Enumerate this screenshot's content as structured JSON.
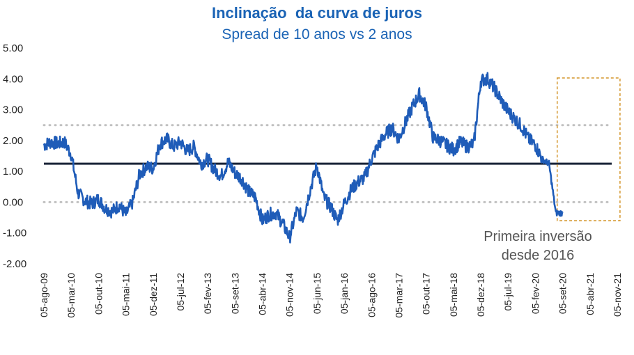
{
  "chart_data": {
    "type": "line",
    "title": "Inclinação  da curva de juros",
    "subtitle": "Spread de 10 anos vs 2 anos",
    "xlabel": "",
    "ylabel": "",
    "ylim": [
      -2.0,
      5.0
    ],
    "ytick_labels": [
      "5.00",
      "4.00",
      "3.00",
      "2.00",
      "1.00",
      "0.00",
      "-1.00",
      "-2.00"
    ],
    "yticks": [
      5,
      4,
      3,
      2,
      1,
      0,
      -1,
      -2
    ],
    "xtick_labels": [
      "05-ago-09",
      "05-mar-10",
      "05-out-10",
      "05-mai-11",
      "05-dez-11",
      "05-jul-12",
      "05-fev-13",
      "05-set-13",
      "05-abr-14",
      "05-nov-14",
      "05-jun-15",
      "05-jan-16",
      "05-ago-16",
      "05-mar-17",
      "05-out-17",
      "05-mai-18",
      "05-dez-18",
      "05-jul-19",
      "05-fev-20",
      "05-set-20",
      "05-abr-21",
      "05-nov-21"
    ],
    "grid": false,
    "reference_lines": [
      {
        "y": 2.5,
        "style": "dotted",
        "color": "#c0c0c0"
      },
      {
        "y": 0.0,
        "style": "dotted",
        "color": "#c0c0c0"
      },
      {
        "y": 1.25,
        "style": "solid",
        "color": "#1a2538"
      }
    ],
    "series": [
      {
        "color": "#1f5cb8",
        "x": [
          0.0,
          0.25,
          0.5,
          0.75,
          1.0,
          1.25,
          1.5,
          1.75,
          2.0,
          2.25,
          2.5,
          2.75,
          3.0,
          3.25,
          3.5,
          3.75,
          4.0,
          4.25,
          4.5,
          4.75,
          5.0,
          5.25,
          5.5,
          5.75,
          6.0,
          6.25,
          6.5,
          6.75,
          7.0,
          7.25,
          7.5,
          7.75,
          8.0,
          8.25,
          8.5,
          8.75,
          9.0,
          9.25,
          9.5,
          9.75,
          10.0,
          10.25,
          10.5,
          10.75,
          11.0,
          11.25,
          11.5,
          11.75,
          12.0,
          12.25,
          12.5,
          12.75,
          13.0,
          13.25,
          13.5,
          13.75,
          14.0,
          14.25,
          14.5,
          14.75,
          15.0,
          15.25,
          15.5,
          15.75,
          16.0,
          16.25,
          16.5,
          16.75,
          17.0,
          17.25,
          17.5,
          17.75,
          18.0,
          18.25,
          18.5,
          18.75,
          19.0,
          19.25,
          19.5,
          19.75,
          20.0,
          20.25,
          20.5,
          20.75,
          21.0
        ],
        "values": [
          1.85,
          1.95,
          1.9,
          1.95,
          1.55,
          0.3,
          0.05,
          -0.05,
          0.1,
          -0.2,
          -0.3,
          -0.1,
          -0.4,
          0.0,
          0.9,
          1.15,
          1.1,
          1.9,
          2.05,
          1.8,
          1.95,
          1.65,
          1.8,
          1.25,
          1.4,
          1.05,
          0.85,
          1.3,
          0.95,
          0.75,
          0.35,
          0.15,
          -0.6,
          -0.4,
          -0.35,
          -0.7,
          -1.15,
          -0.3,
          -0.5,
          0.4,
          1.2,
          0.15,
          -0.15,
          -0.6,
          -0.05,
          0.4,
          0.65,
          0.8,
          1.4,
          1.85,
          2.2,
          2.4,
          2.05,
          2.6,
          3.1,
          3.5,
          3.1,
          2.1,
          2.0,
          1.85,
          1.7,
          1.95,
          1.8,
          1.9,
          3.95,
          4.0,
          3.7,
          3.3,
          2.95,
          2.7,
          2.45,
          2.05,
          1.85,
          1.4,
          1.25,
          -0.35,
          -0.35,
          null,
          null,
          null,
          null,
          null,
          null,
          null,
          null
        ]
      }
    ],
    "annotations": [
      {
        "text": "Primeira inversão",
        "kind": "callout"
      },
      {
        "text": "desde 2016",
        "kind": "callout"
      }
    ],
    "highlight_box": {
      "x_from": 18.8,
      "x_to": 21.1,
      "color": "#d4962c",
      "style": "dashed"
    }
  }
}
